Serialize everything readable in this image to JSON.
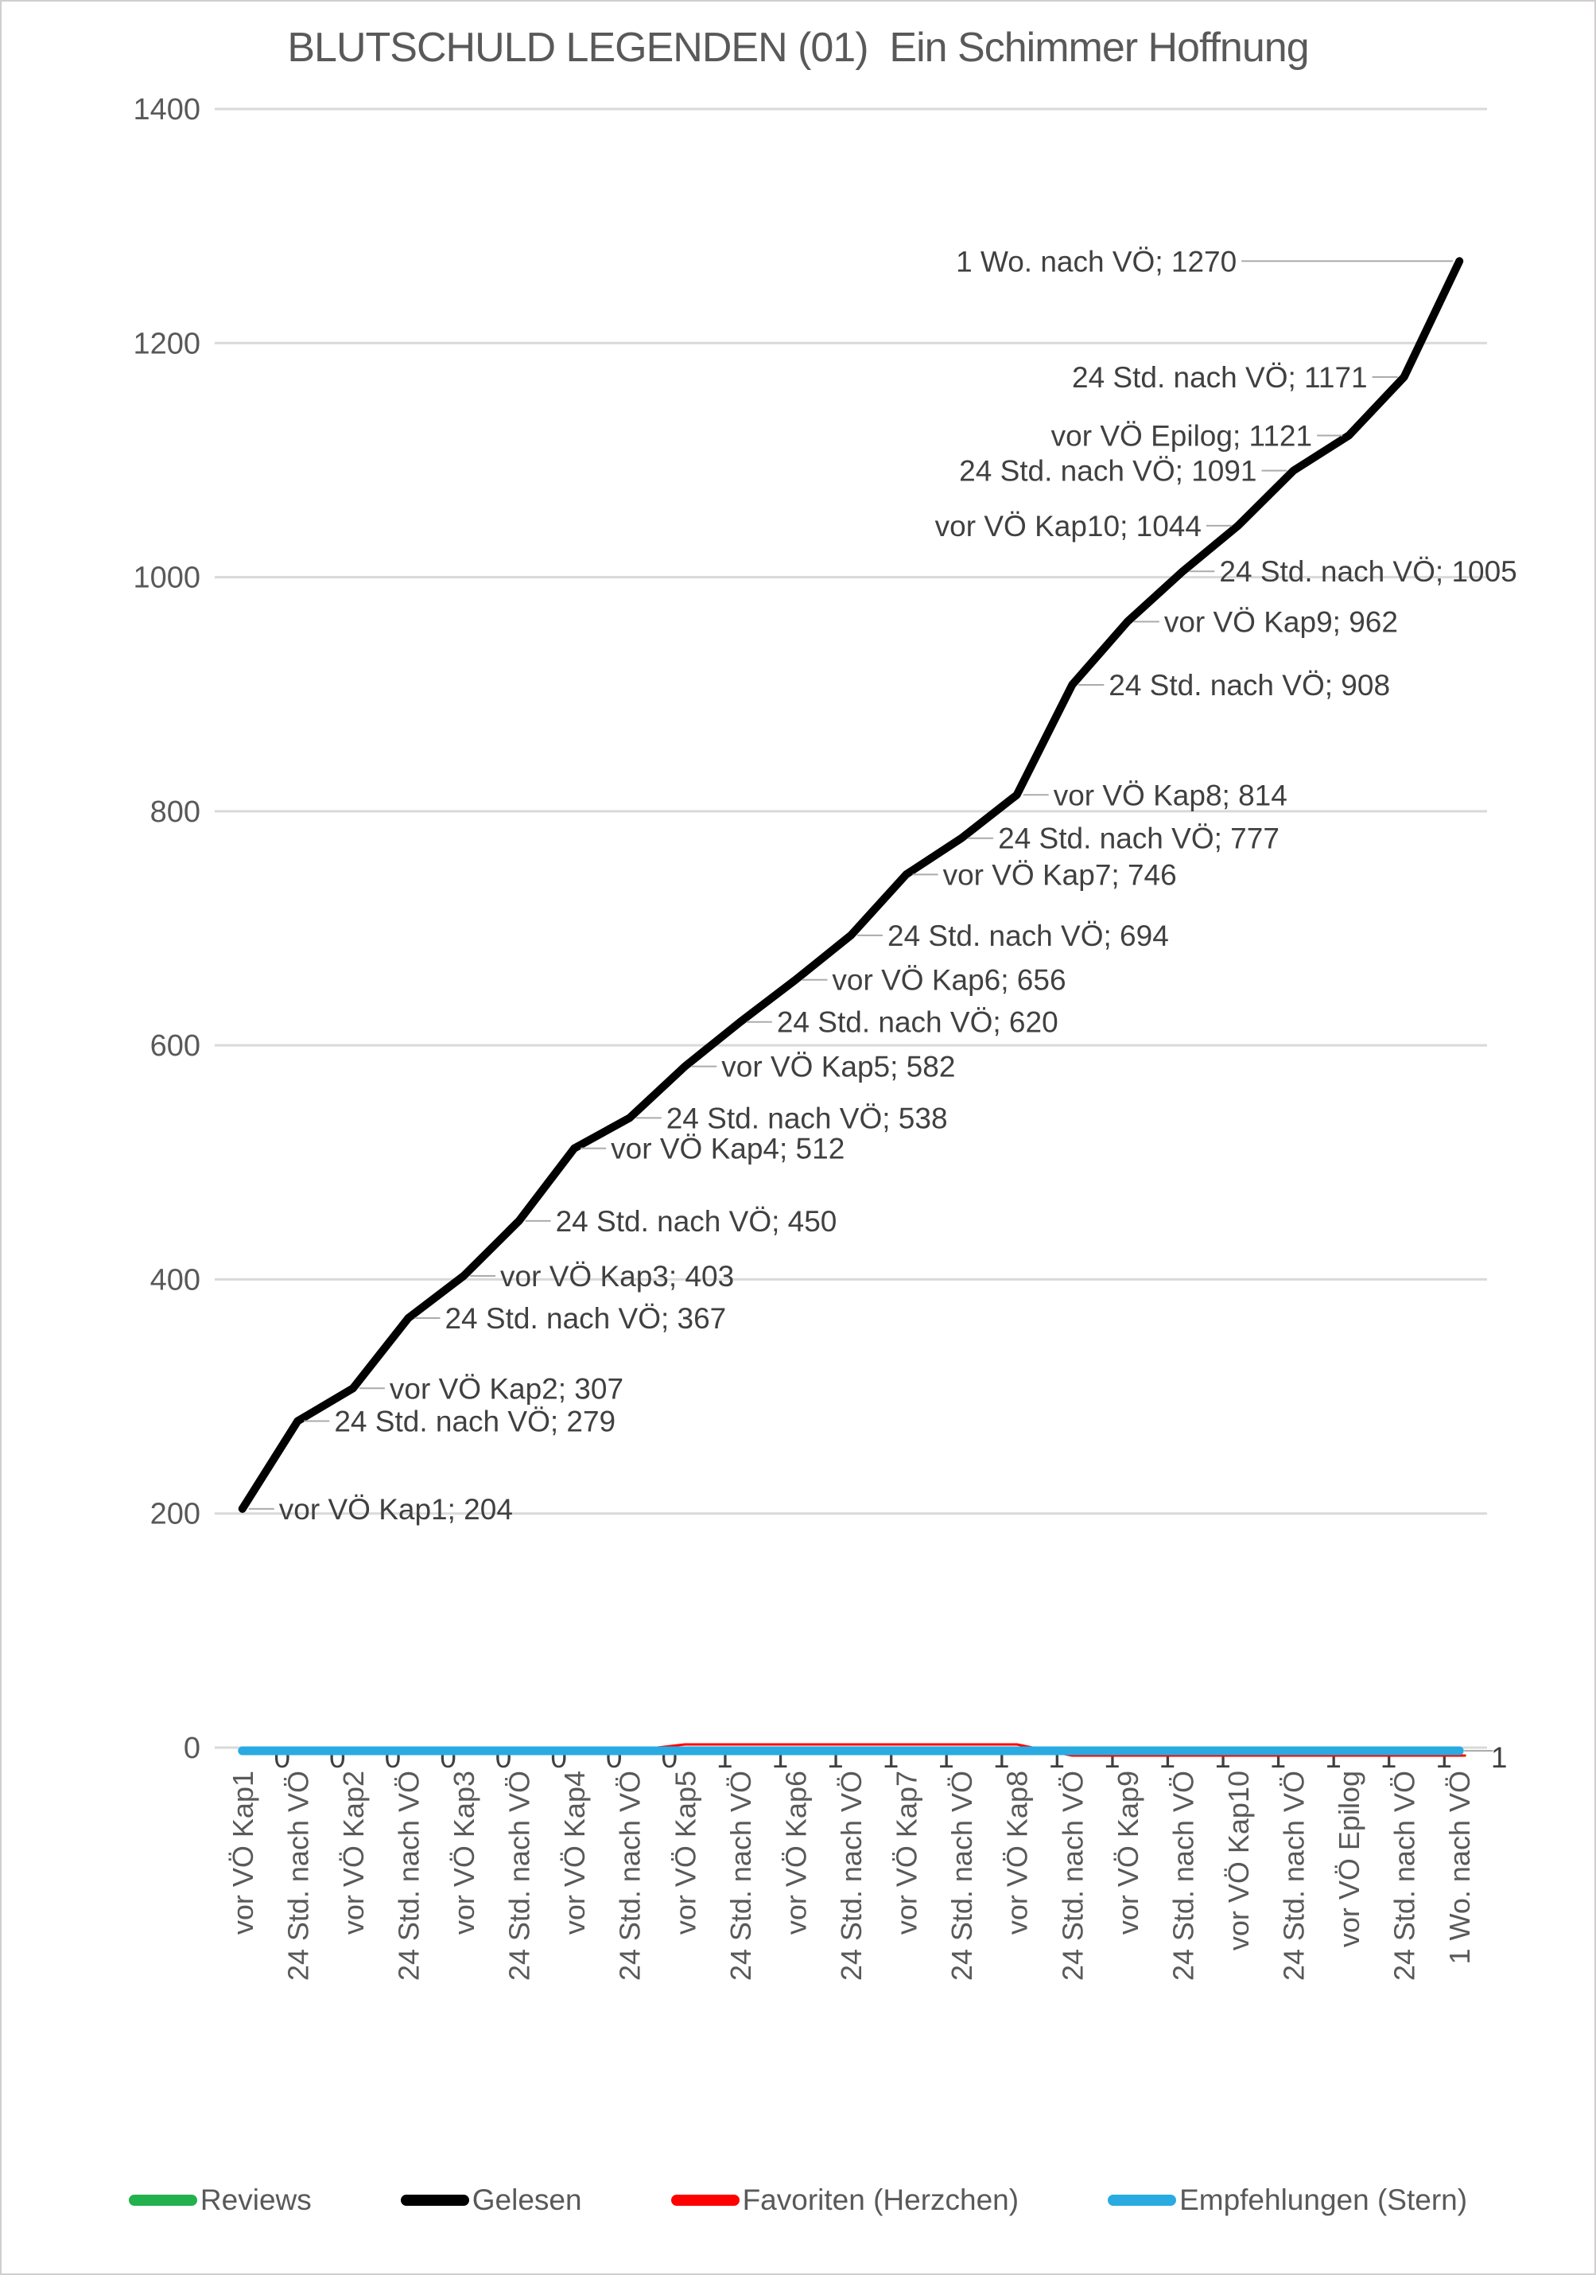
{
  "chart_data": {
    "type": "line",
    "title": "BLUTSCHULD LEGENDEN (01)  Ein Schimmer Hoffnung",
    "categories": [
      "vor VÖ Kap1",
      "24 Std. nach VÖ",
      "vor VÖ Kap2",
      "24 Std. nach VÖ",
      "vor VÖ Kap3",
      "24 Std. nach VÖ",
      "vor VÖ Kap4",
      "24 Std. nach VÖ",
      "vor VÖ Kap5",
      "24 Std. nach VÖ",
      "vor VÖ Kap6",
      "24 Std. nach VÖ",
      "vor VÖ Kap7",
      "24 Std. nach VÖ",
      "vor VÖ Kap8",
      "24 Std. nach VÖ",
      "vor VÖ Kap9",
      "24 Std. nach VÖ",
      "vor VÖ Kap10",
      "24 Std. nach VÖ",
      "vor VÖ Epilog",
      "24 Std. nach VÖ",
      "1 Wo. nach VÖ"
    ],
    "series": [
      {
        "name": "Reviews",
        "color": "#22B14C",
        "values": [
          0,
          0,
          0,
          0,
          0,
          0,
          0,
          0,
          0,
          0,
          0,
          0,
          0,
          0,
          0,
          0,
          0,
          0,
          0,
          0,
          0,
          0,
          0
        ]
      },
      {
        "name": "Gelesen",
        "color": "#000000",
        "values": [
          204,
          279,
          307,
          367,
          403,
          450,
          512,
          538,
          582,
          620,
          656,
          694,
          746,
          777,
          814,
          908,
          962,
          1005,
          1044,
          1091,
          1121,
          1171,
          1270
        ],
        "data_label_format": "category; value"
      },
      {
        "name": "Favoriten (Herzchen)",
        "color": "#FF0000",
        "values": [
          0,
          0,
          0,
          0,
          0,
          0,
          0,
          0,
          1,
          1,
          1,
          1,
          1,
          1,
          1,
          1,
          1,
          1,
          1,
          1,
          1,
          1,
          1
        ],
        "data_label_format": "value"
      },
      {
        "name": "Empfehlungen (Stern)",
        "color": "#29ABE2",
        "values": [
          0,
          0,
          0,
          0,
          0,
          0,
          0,
          0,
          0,
          0,
          0,
          0,
          0,
          0,
          0,
          1,
          1,
          1,
          1,
          1,
          1,
          1,
          1
        ]
      }
    ],
    "ylim": [
      0,
      1400
    ],
    "yticks": [
      0,
      200,
      400,
      600,
      800,
      1000,
      1200,
      1400
    ],
    "grid": true,
    "legend_position": "bottom",
    "x_label_rotation": -90,
    "gelesen_label_sides": [
      "right",
      "right",
      "right",
      "right",
      "right",
      "right",
      "right",
      "right",
      "right",
      "right",
      "right",
      "right",
      "right",
      "right",
      "right",
      "right",
      "right",
      "right",
      "left",
      "left",
      "left",
      "left",
      "left-far"
    ],
    "colors": {
      "grid": "#D9D9D9",
      "axis_text": "#595959",
      "data_label_text": "#404040",
      "leader_line": "#ABABAB",
      "title_text": "#595959"
    }
  }
}
